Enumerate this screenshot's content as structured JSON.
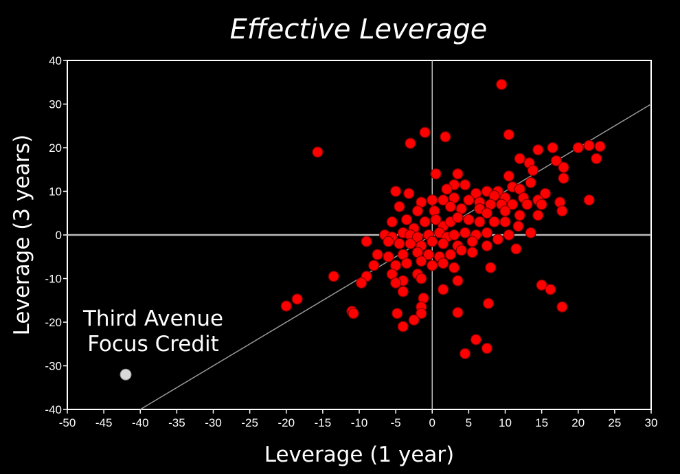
{
  "chart_data": {
    "type": "scatter",
    "title": "Effective Leverage",
    "xlabel": "Leverage (1 year)",
    "ylabel": "Leverage (3 years)",
    "xlim": [
      -50,
      30
    ],
    "ylim": [
      -40,
      40
    ],
    "x_ticks": [
      -50,
      -45,
      -40,
      -35,
      -30,
      -25,
      -20,
      -15,
      -10,
      -5,
      0,
      5,
      10,
      15,
      20,
      25,
      30
    ],
    "y_ticks": [
      -40,
      -30,
      -20,
      -10,
      0,
      10,
      20,
      30,
      40
    ],
    "reference_lines": [
      {
        "kind": "horizontal",
        "value": 0
      },
      {
        "kind": "vertical",
        "value": 0
      },
      {
        "kind": "diagonal",
        "points": [
          [
            -40,
            -40
          ],
          [
            30,
            30
          ]
        ]
      }
    ],
    "colors": {
      "background": "#000000",
      "funds": "#ff0000",
      "highlight": "#d9d9d9",
      "diagonal": "#9a9a9a",
      "axis": "#ffffff"
    },
    "series": [
      {
        "points": [
          [
            9.5,
            34.5
          ],
          [
            -1,
            23.5
          ],
          [
            1.8,
            22.5
          ],
          [
            10.5,
            23
          ],
          [
            -3,
            21
          ],
          [
            -15.7,
            19
          ],
          [
            14.5,
            19.5
          ],
          [
            16.5,
            20
          ],
          [
            20,
            20
          ],
          [
            21.5,
            20.5
          ],
          [
            23,
            20.3
          ],
          [
            22.5,
            17.5
          ],
          [
            17,
            17
          ],
          [
            18,
            15.5
          ],
          [
            12,
            17.5
          ],
          [
            13.3,
            16.5
          ],
          [
            13.8,
            14.8
          ],
          [
            18,
            13
          ],
          [
            10.5,
            13.5
          ],
          [
            13.5,
            12
          ],
          [
            7.5,
            10
          ],
          [
            9,
            10
          ],
          [
            11,
            11
          ],
          [
            12,
            10.5
          ],
          [
            15.5,
            9.5
          ],
          [
            17.5,
            7.5
          ],
          [
            21.5,
            8
          ],
          [
            17.8,
            5.5
          ],
          [
            0.5,
            14
          ],
          [
            3.5,
            14
          ],
          [
            3,
            11.5
          ],
          [
            -5,
            10
          ],
          [
            -3.2,
            9.5
          ],
          [
            2,
            10.5
          ],
          [
            4.5,
            11.5
          ],
          [
            6,
            9.5
          ],
          [
            8.5,
            9
          ],
          [
            10,
            8.5
          ],
          [
            12.5,
            8.5
          ],
          [
            14.5,
            8
          ],
          [
            -4.5,
            6.5
          ],
          [
            -1.5,
            7.5
          ],
          [
            0,
            8
          ],
          [
            1.5,
            8
          ],
          [
            3,
            8.5
          ],
          [
            5,
            8
          ],
          [
            6.5,
            7.5
          ],
          [
            8,
            7
          ],
          [
            9.5,
            7
          ],
          [
            11,
            7
          ],
          [
            13,
            7
          ],
          [
            15,
            7
          ],
          [
            -2,
            5.5
          ],
          [
            0.3,
            5.5
          ],
          [
            2.5,
            6.5
          ],
          [
            4,
            6
          ],
          [
            6.5,
            6
          ],
          [
            7.5,
            5
          ],
          [
            10,
            5.5
          ],
          [
            12,
            4.5
          ],
          [
            14.5,
            4.5
          ],
          [
            -5.5,
            3
          ],
          [
            -3.5,
            3.5
          ],
          [
            -2.5,
            1.5
          ],
          [
            -1,
            3
          ],
          [
            0.5,
            3.5
          ],
          [
            1.5,
            2
          ],
          [
            2.5,
            3
          ],
          [
            3.5,
            4
          ],
          [
            5,
            3.5
          ],
          [
            6.5,
            3
          ],
          [
            8.5,
            3
          ],
          [
            10,
            3
          ],
          [
            11.8,
            2
          ],
          [
            13.5,
            0.5
          ],
          [
            -6.5,
            0
          ],
          [
            -5.5,
            -0.5
          ],
          [
            -4,
            0.5
          ],
          [
            -3,
            0
          ],
          [
            -2,
            -0.5
          ],
          [
            -0.5,
            0
          ],
          [
            1,
            0.5
          ],
          [
            2,
            -0.5
          ],
          [
            3,
            0
          ],
          [
            4.5,
            0.5
          ],
          [
            6,
            0
          ],
          [
            7.5,
            0.5
          ],
          [
            9,
            -1
          ],
          [
            10.5,
            0
          ],
          [
            11.5,
            -3.2
          ],
          [
            -9,
            -1.5
          ],
          [
            -6,
            -1.5
          ],
          [
            -4.5,
            -2
          ],
          [
            -3,
            -2
          ],
          [
            -1.5,
            -2.5
          ],
          [
            0,
            -1.5
          ],
          [
            1.5,
            -2
          ],
          [
            3.5,
            -2.5
          ],
          [
            5.5,
            -1.5
          ],
          [
            7.5,
            -2.5
          ],
          [
            -7.5,
            -4.5
          ],
          [
            -6,
            -5
          ],
          [
            -4,
            -4.5
          ],
          [
            -2,
            -4
          ],
          [
            -0.5,
            -4.5
          ],
          [
            1,
            -5
          ],
          [
            2.5,
            -4.5
          ],
          [
            4,
            -3.5
          ],
          [
            5.5,
            -4
          ],
          [
            -8,
            -7
          ],
          [
            -5,
            -7
          ],
          [
            -3.5,
            -6.5
          ],
          [
            -1.5,
            -6
          ],
          [
            0,
            -7
          ],
          [
            1.5,
            -6.5
          ],
          [
            3,
            -7.5
          ],
          [
            -9,
            -9.5
          ],
          [
            -5.5,
            -9
          ],
          [
            -4,
            -10.5
          ],
          [
            -2,
            -9
          ],
          [
            -1.5,
            -10
          ],
          [
            3.5,
            -10.5
          ],
          [
            -9.7,
            -11
          ],
          [
            -13.5,
            -9.5
          ],
          [
            -5,
            -11
          ],
          [
            -4,
            -13
          ],
          [
            1.5,
            -12.5
          ],
          [
            8,
            -7.5
          ],
          [
            15,
            -11.5
          ],
          [
            16.2,
            -12.5
          ],
          [
            -20,
            -16.3
          ],
          [
            -18.5,
            -14.7
          ],
          [
            -11,
            -17.5
          ],
          [
            -10.8,
            -18
          ],
          [
            -1.2,
            -14.5
          ],
          [
            -1.5,
            -16.5
          ],
          [
            -1.5,
            -18
          ],
          [
            3.5,
            -17.8
          ],
          [
            7.7,
            -15.7
          ],
          [
            17.8,
            -16.5
          ],
          [
            -4.8,
            -18
          ],
          [
            -2.5,
            -19.5
          ],
          [
            -4,
            -21
          ],
          [
            6,
            -24
          ],
          [
            4.5,
            -27.2
          ],
          [
            7.5,
            -26
          ]
        ]
      },
      {
        "name": "Third Avenue Focus Credit",
        "points": [
          [
            -42,
            -32
          ]
        ]
      }
    ],
    "annotations": [
      {
        "text_lines": [
          "Third Avenue",
          "Focus Credit"
        ]
      }
    ]
  }
}
